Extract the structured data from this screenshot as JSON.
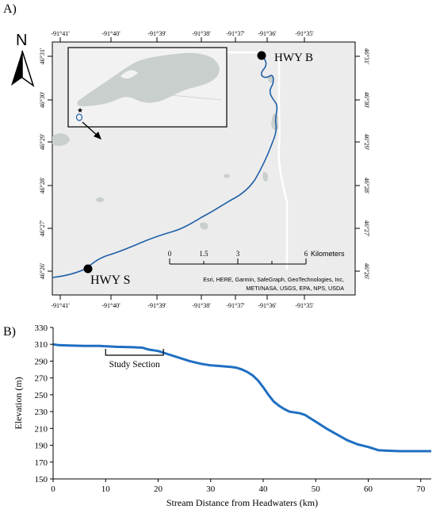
{
  "panel_a": {
    "label": "A)",
    "north_label": "N",
    "lon_ticks": [
      "-91°41'",
      "-91°40'",
      "-91°39'",
      "-91°38'",
      "-91°37'",
      "-91°36'",
      "-91°35'"
    ],
    "lat_ticks": [
      "46°31'",
      "46°30'",
      "46°29'",
      "46°28'",
      "46°27'",
      "46°26'"
    ],
    "sites": [
      {
        "name": "HWY B",
        "position": "upstream"
      },
      {
        "name": "HWY S",
        "position": "downstream"
      }
    ],
    "scale_bar": {
      "labels": [
        "0",
        "1.5",
        "3",
        "6"
      ],
      "unit": "Kilometers"
    },
    "attribution_line1": "Esri, HERE, Garmin, SafeGraph, GeoTechnologies, Inc,",
    "attribution_line2": "METI/NASA, USGS, EPA, NPS, USDA",
    "colors": {
      "river": "#1f5fa8",
      "land": "#ececec",
      "water": "#c9cfcc",
      "road": "#ffffff"
    }
  },
  "panel_b": {
    "label": "B)",
    "annotation": "Study Section"
  },
  "chart_data": {
    "type": "line",
    "xlabel": "Stream Distance from Headwaters (km)",
    "ylabel": "Elevation (m)",
    "xlim": [
      0,
      72
    ],
    "ylim": [
      150,
      330
    ],
    "xticks": [
      0,
      10,
      20,
      30,
      40,
      50,
      60,
      70
    ],
    "yticks": [
      150,
      170,
      190,
      210,
      230,
      250,
      270,
      290,
      310,
      330
    ],
    "annotation": {
      "text": "Study Section",
      "x_start": 10,
      "x_end": 21,
      "y": 297
    },
    "series": [
      {
        "color": "#1f6fc2",
        "x": [
          0,
          1,
          3,
          6,
          9,
          12,
          15,
          17,
          18,
          19,
          20,
          21,
          22,
          24,
          26,
          28,
          30,
          32,
          34,
          35,
          36,
          37,
          38,
          39,
          40,
          41,
          42,
          43,
          44,
          45,
          46,
          47,
          48,
          49,
          50,
          52,
          54,
          56,
          58,
          60,
          61,
          62,
          64,
          66,
          68,
          70,
          72
        ],
        "y": [
          310,
          309,
          308.5,
          308,
          308,
          307,
          306.5,
          306,
          304,
          303,
          302,
          300,
          298,
          294,
          290,
          287,
          285,
          284,
          283,
          282,
          280,
          277,
          273,
          267,
          259,
          250,
          242,
          237,
          233,
          230,
          229,
          228,
          226,
          222,
          218,
          210,
          203,
          196,
          191,
          188,
          186,
          184,
          183.5,
          183,
          183,
          183,
          183
        ]
      }
    ]
  }
}
